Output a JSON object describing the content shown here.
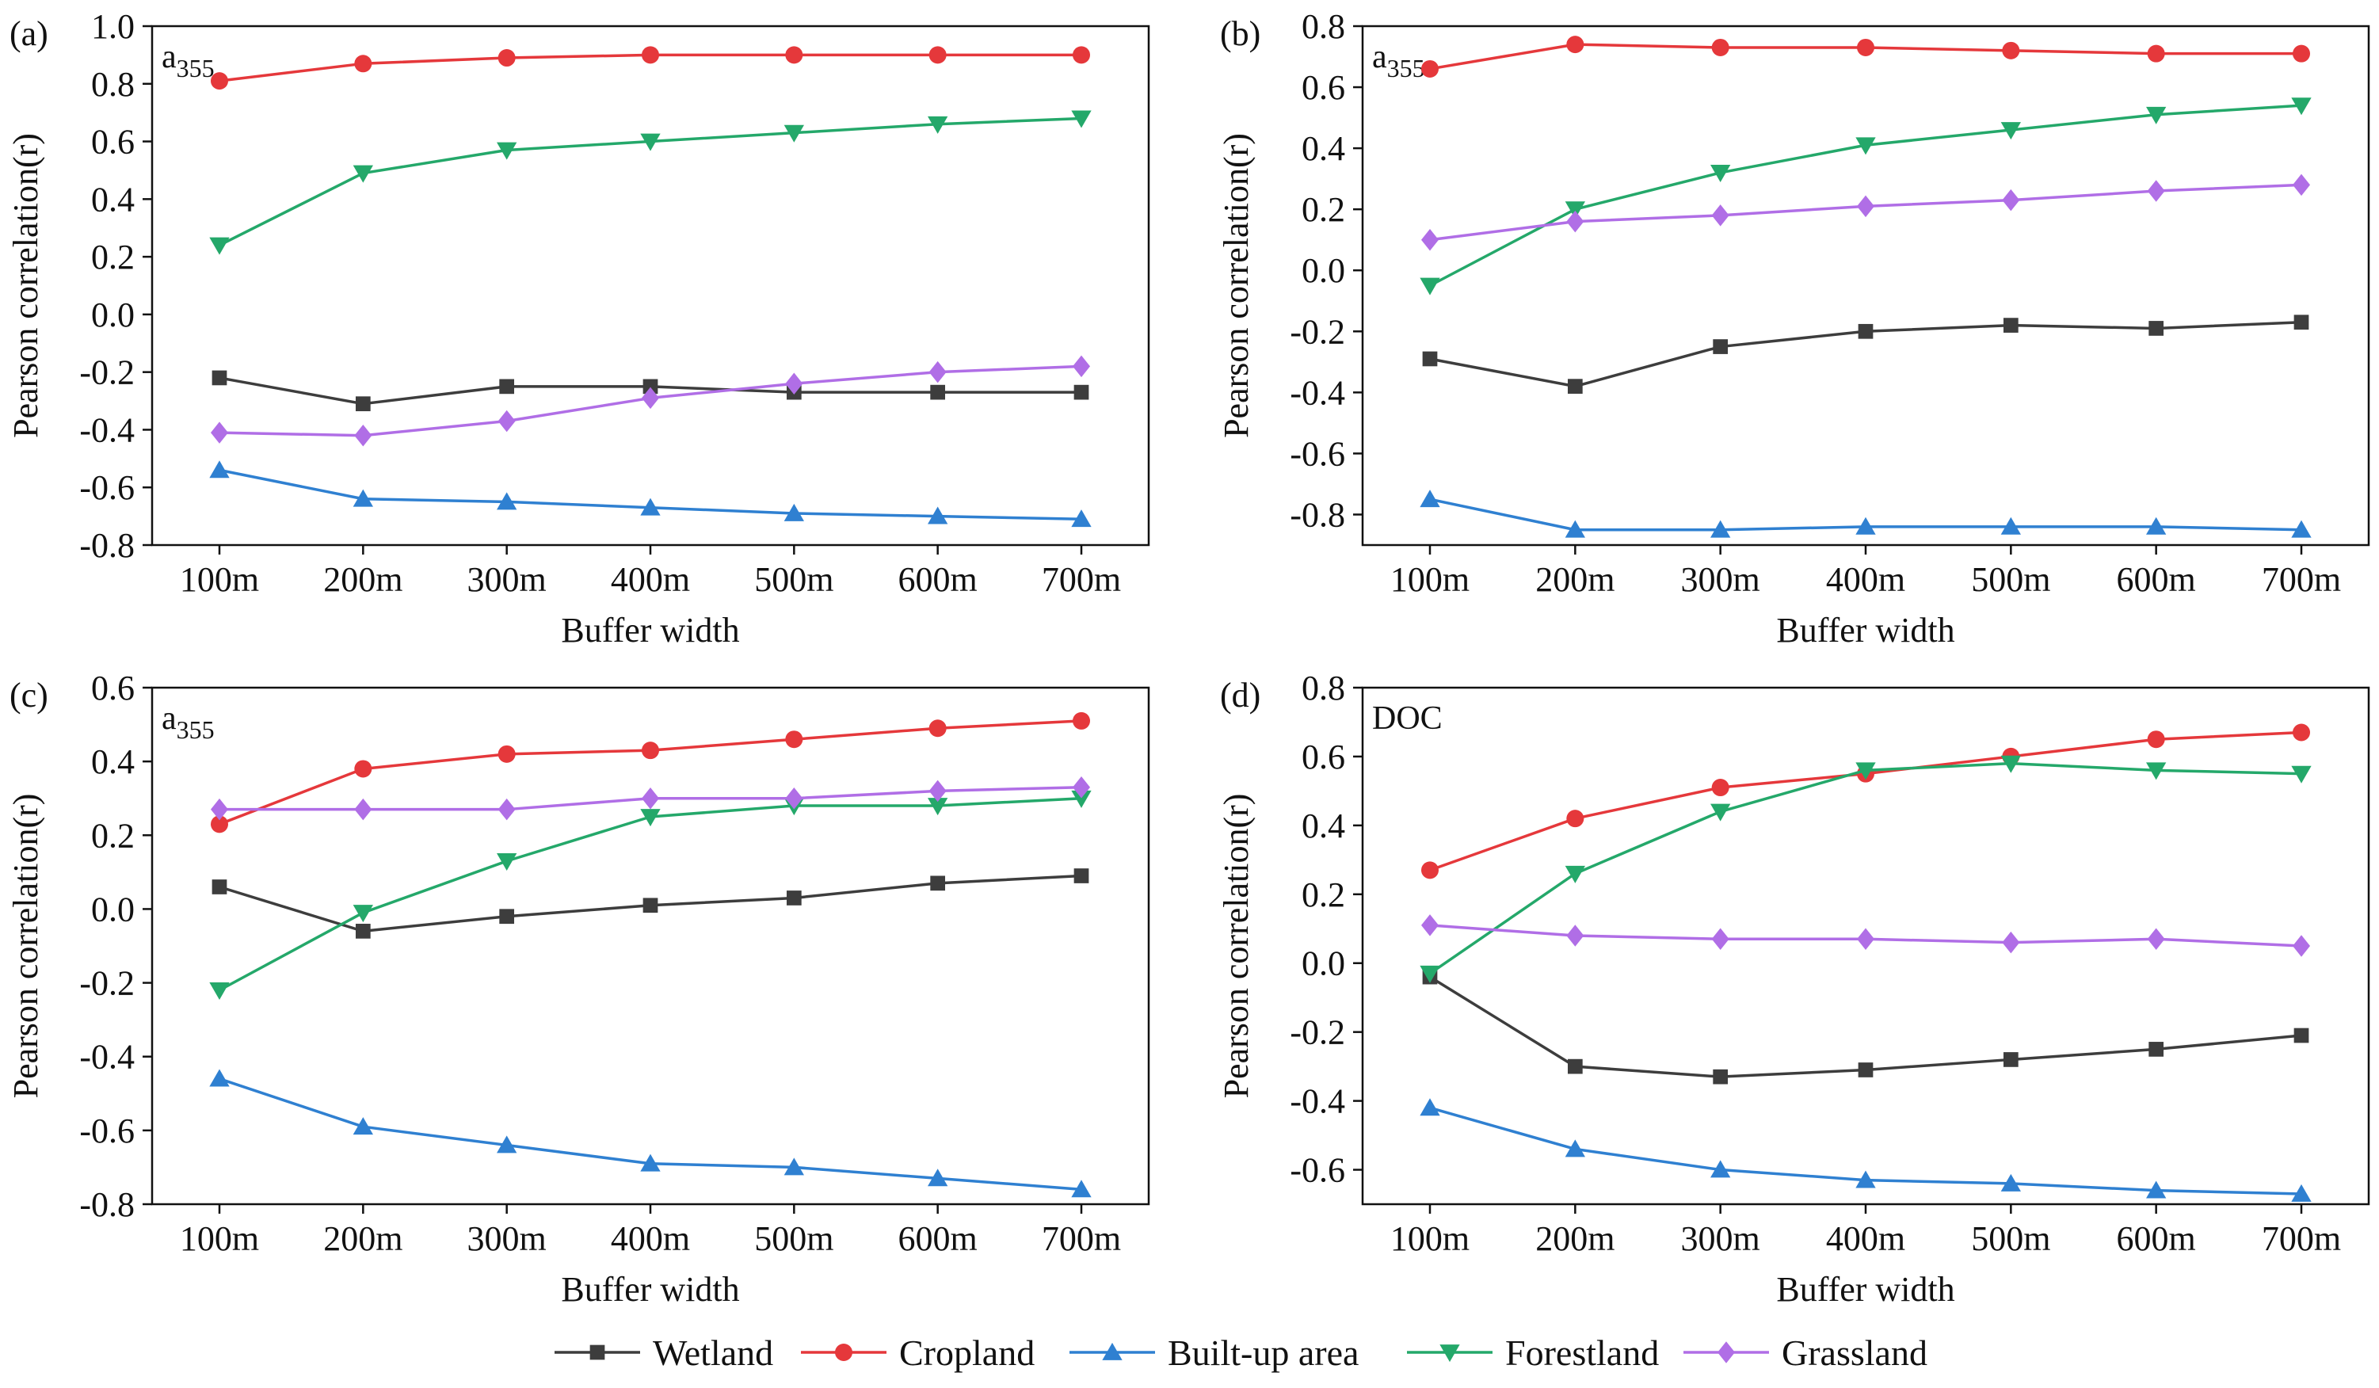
{
  "chart_data": [
    {
      "type": "line",
      "panel_label": "(a)",
      "annotation": {
        "main": "a",
        "sub": "355"
      },
      "xlabel": "Buffer width",
      "ylabel": "Pearson correlation(r)",
      "ylim": [
        -0.8,
        1.0
      ],
      "yticks": [
        "1.0",
        "0.8",
        "0.6",
        "0.4",
        "0.2",
        "0.0",
        "-0.2",
        "-0.4",
        "-0.6",
        "-0.8"
      ],
      "categories": [
        "100m",
        "200m",
        "300m",
        "400m",
        "500m",
        "600m",
        "700m"
      ],
      "series": [
        {
          "name": "Wetland",
          "values": [
            -0.22,
            -0.31,
            -0.25,
            -0.25,
            -0.27,
            -0.27,
            -0.27
          ]
        },
        {
          "name": "Cropland",
          "values": [
            0.81,
            0.87,
            0.89,
            0.9,
            0.9,
            0.9,
            0.9
          ]
        },
        {
          "name": "Built-up area",
          "values": [
            -0.54,
            -0.64,
            -0.65,
            -0.67,
            -0.69,
            -0.7,
            -0.71
          ]
        },
        {
          "name": "Forestland",
          "values": [
            0.24,
            0.49,
            0.57,
            0.6,
            0.63,
            0.66,
            0.68
          ]
        },
        {
          "name": "Grassland",
          "values": [
            -0.41,
            -0.42,
            -0.37,
            -0.29,
            -0.24,
            -0.2,
            -0.18
          ]
        }
      ]
    },
    {
      "type": "line",
      "panel_label": "(b)",
      "annotation": {
        "main": "a",
        "sub": "355"
      },
      "xlabel": "Buffer width",
      "ylabel": "Pearson correlation(r)",
      "ylim": [
        -0.9,
        0.8
      ],
      "yticks": [
        "0.8",
        "0.6",
        "0.4",
        "0.2",
        "0.0",
        "-0.2",
        "-0.4",
        "-0.6",
        "-0.8"
      ],
      "categories": [
        "100m",
        "200m",
        "300m",
        "400m",
        "500m",
        "600m",
        "700m"
      ],
      "series": [
        {
          "name": "Wetland",
          "values": [
            -0.29,
            -0.38,
            -0.25,
            -0.2,
            -0.18,
            -0.19,
            -0.17
          ]
        },
        {
          "name": "Cropland",
          "values": [
            0.66,
            0.74,
            0.73,
            0.73,
            0.72,
            0.71,
            0.71
          ]
        },
        {
          "name": "Built-up area",
          "values": [
            -0.75,
            -0.85,
            -0.85,
            -0.84,
            -0.84,
            -0.84,
            -0.85
          ]
        },
        {
          "name": "Forestland",
          "values": [
            -0.05,
            0.2,
            0.32,
            0.41,
            0.46,
            0.51,
            0.54
          ]
        },
        {
          "name": "Grassland",
          "values": [
            0.1,
            0.16,
            0.18,
            0.21,
            0.23,
            0.26,
            0.28
          ]
        }
      ]
    },
    {
      "type": "line",
      "panel_label": "(c)",
      "annotation": {
        "main": "a",
        "sub": "355"
      },
      "xlabel": "Buffer width",
      "ylabel": "Pearson correlation(r)",
      "ylim": [
        -0.8,
        0.6
      ],
      "yticks": [
        "0.6",
        "0.4",
        "0.2",
        "0.0",
        "-0.2",
        "-0.4",
        "-0.6",
        "-0.8"
      ],
      "categories": [
        "100m",
        "200m",
        "300m",
        "400m",
        "500m",
        "600m",
        "700m"
      ],
      "series": [
        {
          "name": "Wetland",
          "values": [
            0.06,
            -0.06,
            -0.02,
            0.01,
            0.03,
            0.07,
            0.09
          ]
        },
        {
          "name": "Cropland",
          "values": [
            0.23,
            0.38,
            0.42,
            0.43,
            0.46,
            0.49,
            0.51
          ]
        },
        {
          "name": "Built-up area",
          "values": [
            -0.46,
            -0.59,
            -0.64,
            -0.69,
            -0.7,
            -0.73,
            -0.76
          ]
        },
        {
          "name": "Forestland",
          "values": [
            -0.22,
            -0.01,
            0.13,
            0.25,
            0.28,
            0.28,
            0.3
          ]
        },
        {
          "name": "Grassland",
          "values": [
            0.27,
            0.27,
            0.27,
            0.3,
            0.3,
            0.32,
            0.33
          ]
        }
      ]
    },
    {
      "type": "line",
      "panel_label": "(d)",
      "annotation": {
        "main": "DOC",
        "sub": ""
      },
      "xlabel": "Buffer width",
      "ylabel": "Pearson correlation(r)",
      "ylim": [
        -0.7,
        0.8
      ],
      "yticks": [
        "0.8",
        "0.6",
        "0.4",
        "0.2",
        "0.0",
        "-0.2",
        "-0.4",
        "-0.6"
      ],
      "categories": [
        "100m",
        "200m",
        "300m",
        "400m",
        "500m",
        "600m",
        "700m"
      ],
      "series": [
        {
          "name": "Wetland",
          "values": [
            -0.04,
            -0.3,
            -0.33,
            -0.31,
            -0.28,
            -0.25,
            -0.21
          ]
        },
        {
          "name": "Cropland",
          "values": [
            0.27,
            0.42,
            0.51,
            0.55,
            0.6,
            0.65,
            0.67
          ]
        },
        {
          "name": "Built-up area",
          "values": [
            -0.42,
            -0.54,
            -0.6,
            -0.63,
            -0.64,
            -0.66,
            -0.67
          ]
        },
        {
          "name": "Forestland",
          "values": [
            -0.03,
            0.26,
            0.44,
            0.56,
            0.58,
            0.56,
            0.55
          ]
        },
        {
          "name": "Grassland",
          "values": [
            0.11,
            0.08,
            0.07,
            0.07,
            0.06,
            0.07,
            0.05
          ]
        }
      ]
    }
  ],
  "legend": {
    "placement": "bottom-center",
    "items": [
      {
        "name": "Wetland",
        "color": "#3d3d3d",
        "marker": "square"
      },
      {
        "name": "Cropland",
        "color": "#e5383b",
        "marker": "circle"
      },
      {
        "name": "Built-up area",
        "color": "#2f80d1",
        "marker": "triangle-up"
      },
      {
        "name": "Forestland",
        "color": "#24a86a",
        "marker": "triangle-down"
      },
      {
        "name": "Grassland",
        "color": "#b06ee6",
        "marker": "diamond"
      }
    ]
  }
}
